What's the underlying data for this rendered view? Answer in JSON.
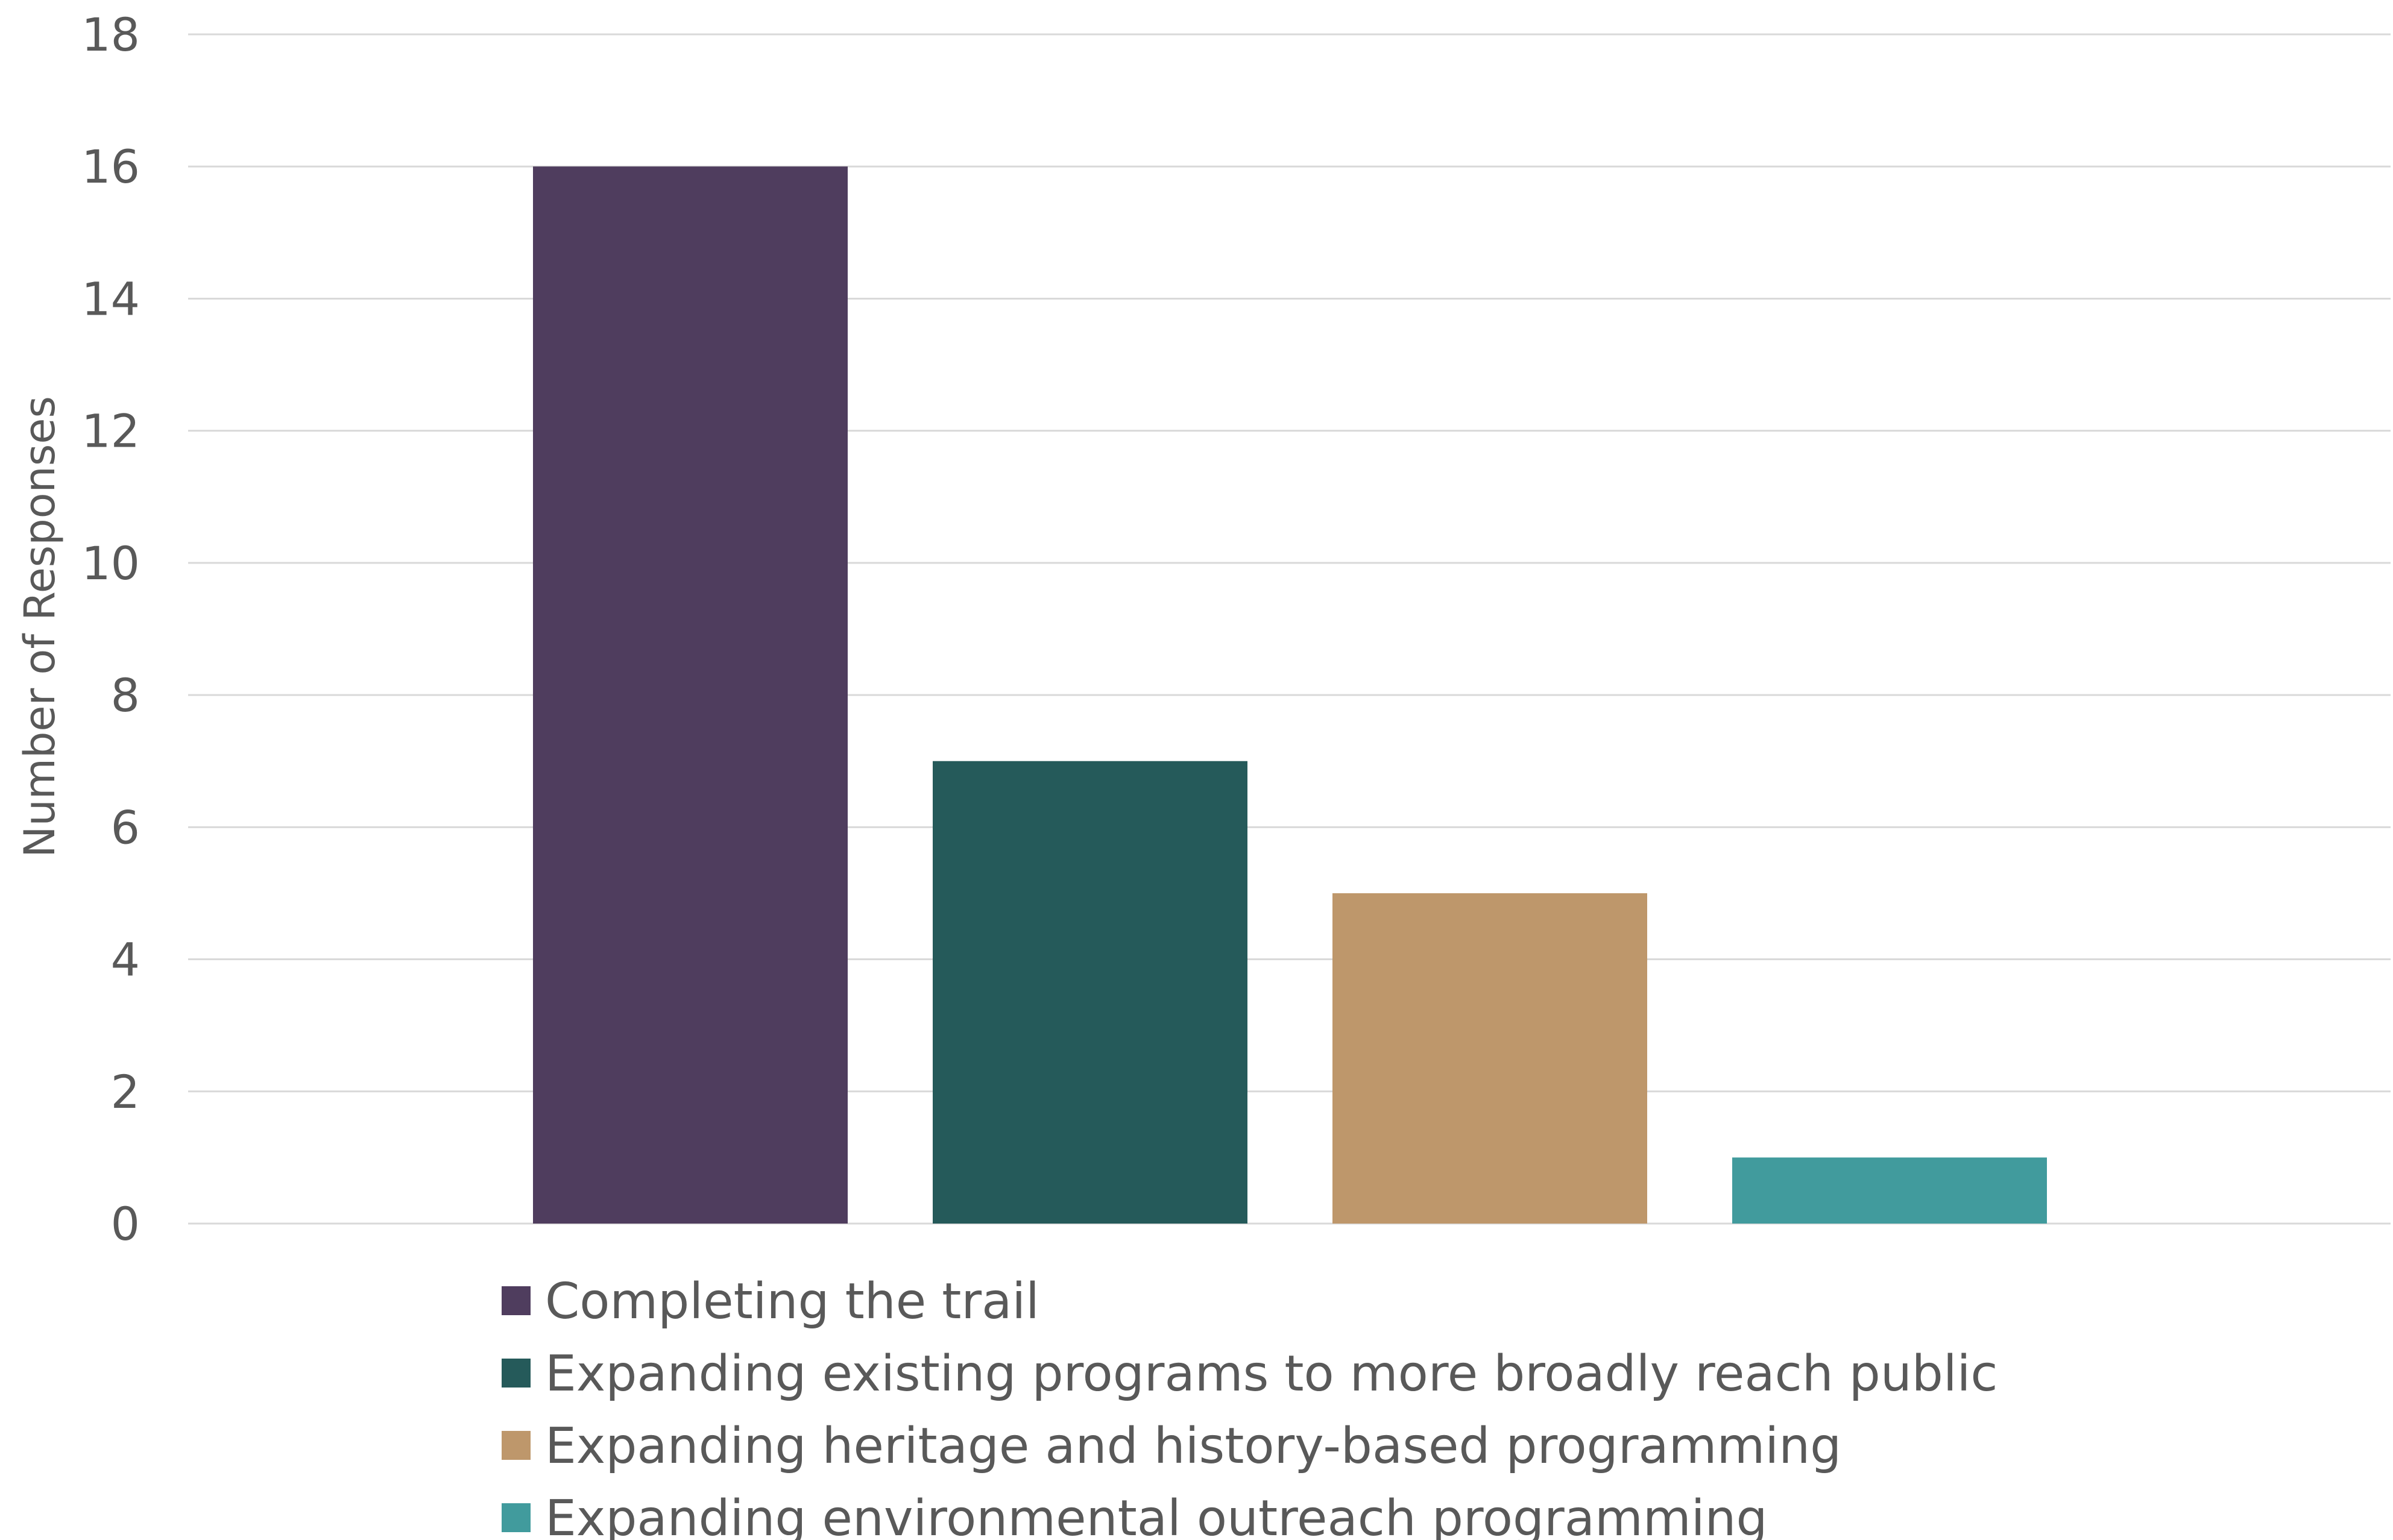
{
  "chart_data": {
    "type": "bar",
    "title": "",
    "xlabel": "",
    "ylabel": "Number of Responses",
    "ylim": [
      0,
      18
    ],
    "yticks": [
      0,
      2,
      4,
      6,
      8,
      10,
      12,
      14,
      16,
      18
    ],
    "grid": true,
    "legend_position": "bottom",
    "categories": [
      "Completing the trail",
      "Expanding existing programs to more broadly reach public",
      "Expanding heritage and history-based programming",
      "Expanding environmental outreach programming"
    ],
    "values": [
      16,
      7,
      5,
      1
    ],
    "colors": [
      "#4f3d5e",
      "#255a5a",
      "#be976b",
      "#419b9d"
    ]
  }
}
